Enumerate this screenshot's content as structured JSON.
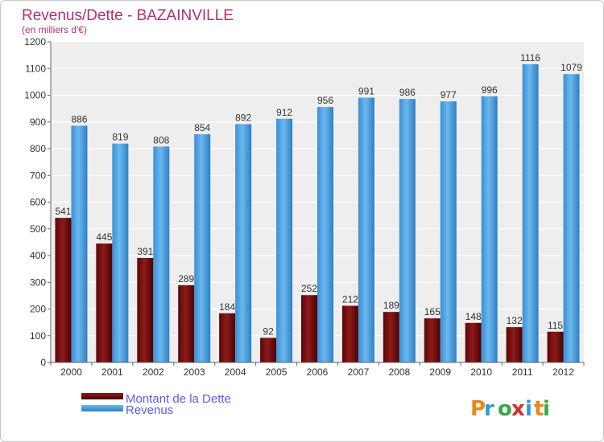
{
  "chart_data": {
    "type": "bar",
    "title": "Revenus/Dette - BAZAINVILLE",
    "subtitle": "(en milliers d'€)",
    "categories": [
      "2000",
      "2001",
      "2002",
      "2003",
      "2004",
      "2005",
      "2006",
      "2007",
      "2008",
      "2009",
      "2010",
      "2011",
      "2012"
    ],
    "series": [
      {
        "name": "Montant de la Dette",
        "color": "#6b0a0a",
        "values": [
          541,
          445,
          391,
          289,
          184,
          92,
          252,
          212,
          189,
          165,
          148,
          132,
          115
        ]
      },
      {
        "name": "Revenus",
        "color": "#4da3e3",
        "values": [
          886,
          819,
          808,
          854,
          892,
          912,
          956,
          991,
          986,
          977,
          996,
          1116,
          1079
        ]
      }
    ],
    "ylim": [
      0,
      1200
    ],
    "yticks": [
      0,
      100,
      200,
      300,
      400,
      500,
      600,
      700,
      800,
      900,
      1000,
      1100,
      1200
    ],
    "grid": true,
    "legend_position": "bottom-left",
    "brand": "Proxiti",
    "colors": {
      "title": "#b03070",
      "plot_bg": "#eeeeee",
      "grid": "#ffffff"
    }
  }
}
